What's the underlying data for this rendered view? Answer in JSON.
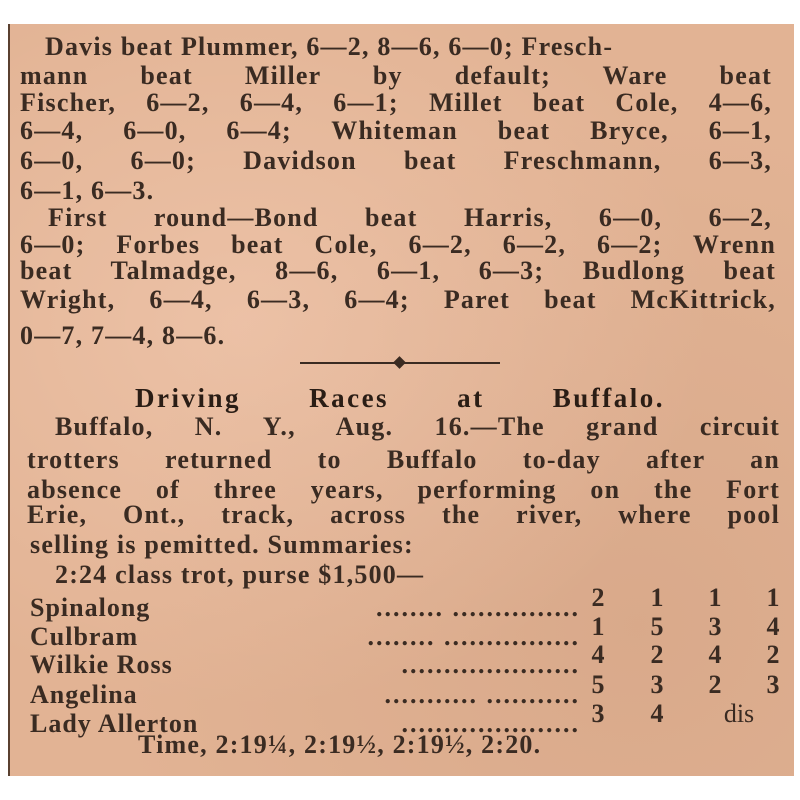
{
  "tennis": {
    "lines": [
      "Davis beat Plummer, 6—2, 8—6, 6—0; Fresch-",
      "mann beat Miller by default; Ware beat",
      "Fischer, 6—2, 6—4, 6—1; Millet beat Cole, 4—6,",
      "6—4, 6—0, 6—4; Whiteman beat Bryce, 6—1,",
      "6—0, 6—0; Davidson beat Freschmann, 6—3,",
      "6—1, 6—3.",
      "First round—Bond beat Harris, 6—0, 6—2,",
      "6—0; Forbes beat Cole, 6—2, 6—2, 6—2; Wrenn",
      "beat Talmadge, 8—6, 6—1, 6—3; Budlong beat",
      "Wright, 6—4, 6—3, 6—4; Paret beat McKittrick,",
      "0—7, 7—4, 8—6."
    ]
  },
  "article": {
    "headline": "Driving Races at Buffalo.",
    "lines": [
      "Buffalo, N. Y., Aug. 16.—The grand circuit",
      "trotters returned to Buffalo to-day after an",
      "absence of three years, performing on the Fort",
      "Erie, Ont., track, across the river, where pool",
      "selling is pemitted. Summaries:"
    ],
    "race_title": "2:24 class trot, purse $1,500—",
    "results": [
      {
        "horse": "Spinalong",
        "dots": "........ ...............",
        "heats": [
          "2",
          "1",
          "1",
          "1"
        ]
      },
      {
        "horse": "Culbram",
        "dots": "........ ................",
        "heats": [
          "1",
          "5",
          "3",
          "4"
        ]
      },
      {
        "horse": "Wilkie Ross",
        "dots": ".....................",
        "heats": [
          "4",
          "2",
          "4",
          "2"
        ]
      },
      {
        "horse": "Angelina",
        "dots": "........... ...........",
        "heats": [
          "5",
          "3",
          "2",
          "3"
        ]
      },
      {
        "horse": "Lady Allerton",
        "dots": ".....................",
        "heats": [
          "3",
          "4",
          "dis",
          ""
        ]
      }
    ],
    "time": "Time, 2:19¼, 2:19½, 2:19½, 2:20."
  }
}
